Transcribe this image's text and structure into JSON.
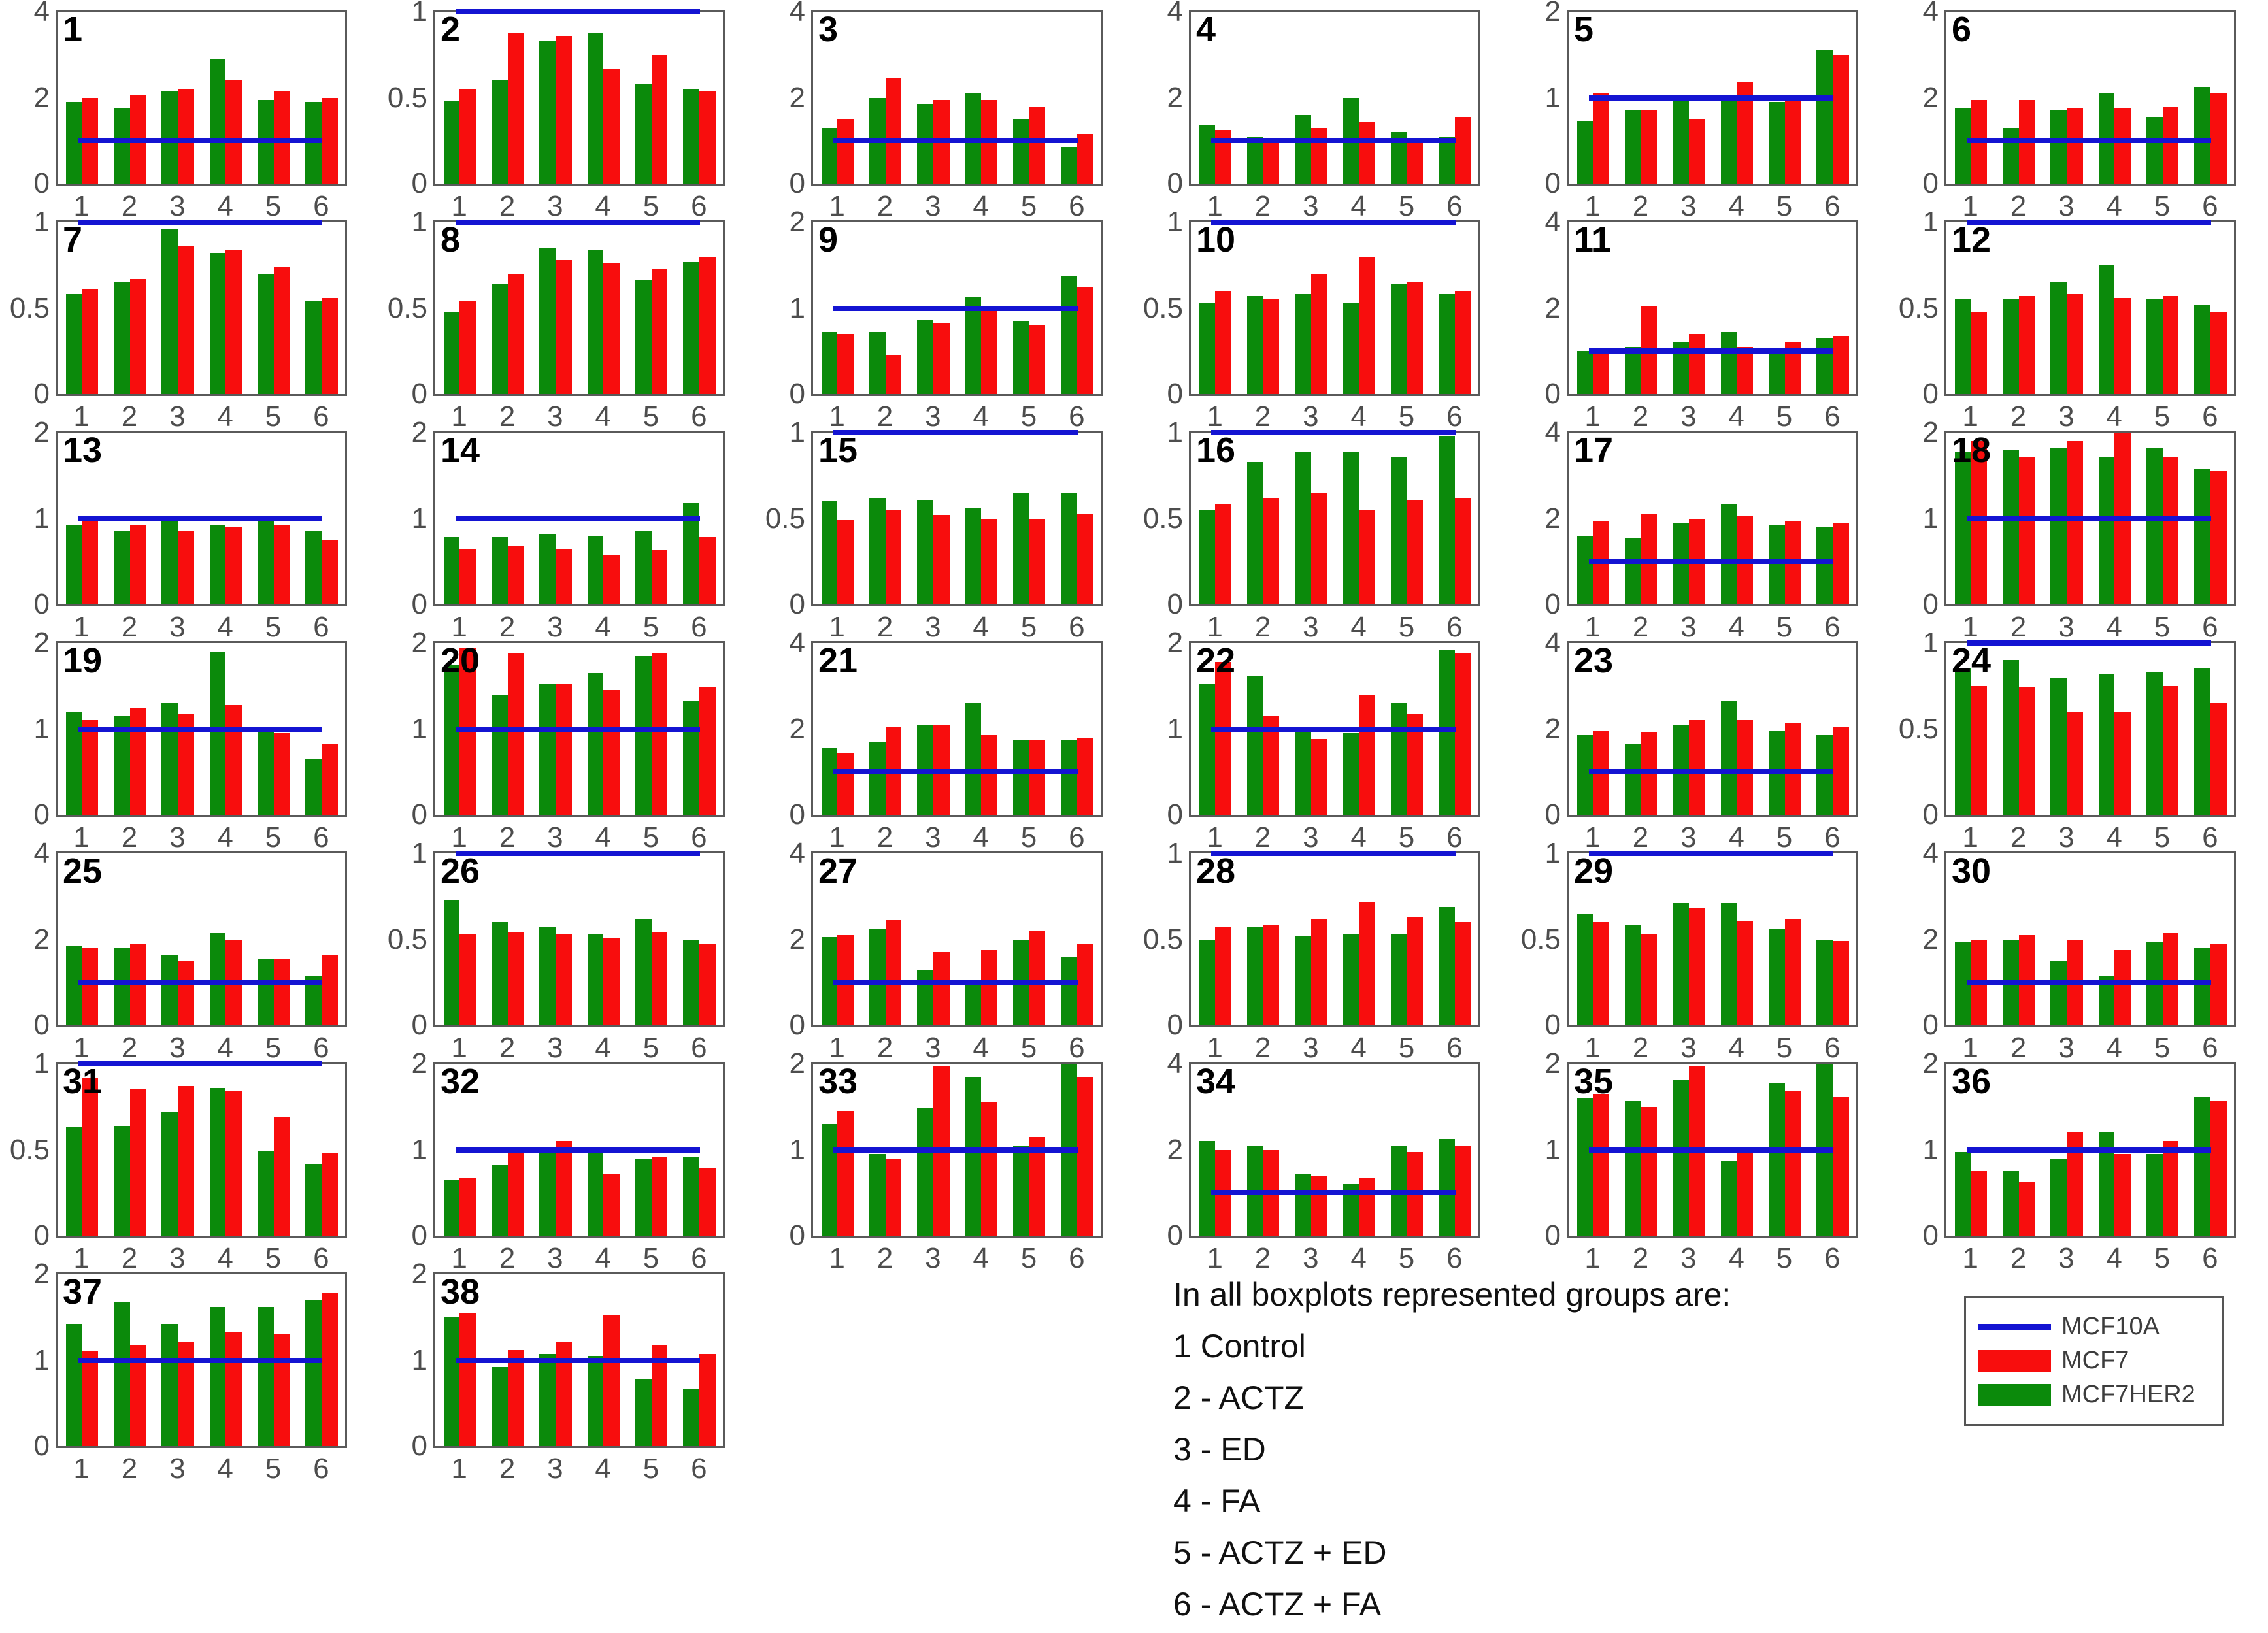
{
  "colors": {
    "mcf10a": "#1414d2",
    "mcf7": "#f80d0d",
    "mcf7her2": "#0b8a0b"
  },
  "notes": {
    "title": "In all boxplots represented groups are:",
    "lines": [
      "1 Control",
      "2 - ACTZ",
      "3 - ED",
      "4 - FA",
      "5 - ACTZ + ED",
      "6 - ACTZ + FA"
    ]
  },
  "legend": {
    "items": [
      {
        "label": "MCF10A",
        "color": "#1414d2",
        "swatch": "line"
      },
      {
        "label": "MCF7",
        "color": "#f80d0d",
        "swatch": "box"
      },
      {
        "label": "MCF7HER2",
        "color": "#0b8a0b",
        "swatch": "box"
      }
    ]
  },
  "chart_meta": {
    "categories": [
      "1",
      "2",
      "3",
      "4",
      "5",
      "6"
    ],
    "series_names": [
      "MCF7HER2",
      "MCF7"
    ],
    "ref_series": "MCF10A",
    "grid": "6 columns x 7 rows, subplots numbered 1-38",
    "legend_position": "bottom-right"
  },
  "chart_data": [
    {
      "id": 1,
      "type": "bar",
      "ymax": 4,
      "yticks": [
        "4",
        "2",
        "0"
      ],
      "ref_line": 1,
      "series": {
        "MCF7HER2": [
          1.9,
          1.75,
          2.15,
          2.9,
          1.95,
          1.9
        ],
        "MCF7": [
          2.0,
          2.05,
          2.2,
          2.4,
          2.15,
          2.0
        ]
      }
    },
    {
      "id": 2,
      "type": "bar",
      "ymax": 1,
      "yticks": [
        "1",
        "0.5",
        "0"
      ],
      "ref_line": 1,
      "series": {
        "MCF7HER2": [
          0.48,
          0.6,
          0.83,
          0.88,
          0.58,
          0.55
        ],
        "MCF7": [
          0.55,
          0.88,
          0.86,
          0.67,
          0.75,
          0.54
        ]
      }
    },
    {
      "id": 3,
      "type": "bar",
      "ymax": 4,
      "yticks": [
        "4",
        "2",
        "0"
      ],
      "ref_line": 1,
      "series": {
        "MCF7HER2": [
          1.3,
          2.0,
          1.85,
          2.1,
          1.5,
          0.85
        ],
        "MCF7": [
          1.5,
          2.45,
          1.95,
          1.95,
          1.8,
          1.15
        ]
      }
    },
    {
      "id": 4,
      "type": "bar",
      "ymax": 4,
      "yticks": [
        "4",
        "2",
        "0"
      ],
      "ref_line": 1,
      "series": {
        "MCF7HER2": [
          1.35,
          1.1,
          1.6,
          2.0,
          1.2,
          1.1
        ],
        "MCF7": [
          1.25,
          1.05,
          1.3,
          1.45,
          1.0,
          1.55
        ]
      }
    },
    {
      "id": 5,
      "type": "bar",
      "ymax": 2,
      "yticks": [
        "2",
        "1",
        "0"
      ],
      "ref_line": 1,
      "series": {
        "MCF7HER2": [
          0.73,
          0.85,
          1.0,
          1.0,
          0.95,
          1.55
        ],
        "MCF7": [
          1.05,
          0.85,
          0.75,
          1.18,
          1.0,
          1.5
        ]
      }
    },
    {
      "id": 6,
      "type": "bar",
      "ymax": 4,
      "yticks": [
        "4",
        "2",
        "0"
      ],
      "ref_line": 1,
      "series": {
        "MCF7HER2": [
          1.75,
          1.3,
          1.7,
          2.1,
          1.55,
          2.25
        ],
        "MCF7": [
          1.95,
          1.95,
          1.75,
          1.75,
          1.8,
          2.1
        ]
      }
    },
    {
      "id": 7,
      "type": "bar",
      "ymax": 1,
      "yticks": [
        "1",
        "0.5",
        "0"
      ],
      "ref_line": 1,
      "series": {
        "MCF7HER2": [
          0.58,
          0.65,
          0.96,
          0.82,
          0.7,
          0.54
        ],
        "MCF7": [
          0.61,
          0.67,
          0.86,
          0.84,
          0.74,
          0.56
        ]
      }
    },
    {
      "id": 8,
      "type": "bar",
      "ymax": 1,
      "yticks": [
        "1",
        "0.5",
        "0"
      ],
      "ref_line": 1,
      "series": {
        "MCF7HER2": [
          0.48,
          0.64,
          0.85,
          0.84,
          0.66,
          0.77
        ],
        "MCF7": [
          0.54,
          0.7,
          0.78,
          0.76,
          0.73,
          0.8
        ]
      }
    },
    {
      "id": 9,
      "type": "bar",
      "ymax": 2,
      "yticks": [
        "2",
        "1",
        "0"
      ],
      "ref_line": 1,
      "series": {
        "MCF7HER2": [
          0.72,
          0.72,
          0.87,
          1.13,
          0.85,
          1.38
        ],
        "MCF7": [
          0.7,
          0.45,
          0.83,
          1.03,
          0.8,
          1.25
        ]
      }
    },
    {
      "id": 10,
      "type": "bar",
      "ymax": 1,
      "yticks": [
        "1",
        "0.5",
        "0"
      ],
      "ref_line": 1,
      "series": {
        "MCF7HER2": [
          0.53,
          0.57,
          0.58,
          0.53,
          0.64,
          0.58
        ],
        "MCF7": [
          0.6,
          0.55,
          0.7,
          0.8,
          0.65,
          0.6
        ]
      }
    },
    {
      "id": 11,
      "type": "bar",
      "ymax": 4,
      "yticks": [
        "4",
        "2",
        "0"
      ],
      "ref_line": 1,
      "series": {
        "MCF7HER2": [
          1.0,
          1.1,
          1.2,
          1.45,
          1.0,
          1.3
        ],
        "MCF7": [
          1.05,
          2.05,
          1.4,
          1.1,
          1.2,
          1.35
        ]
      }
    },
    {
      "id": 12,
      "type": "bar",
      "ymax": 1,
      "yticks": [
        "1",
        "0.5",
        "0"
      ],
      "ref_line": 1,
      "series": {
        "MCF7HER2": [
          0.55,
          0.55,
          0.65,
          0.75,
          0.55,
          0.52
        ],
        "MCF7": [
          0.48,
          0.57,
          0.58,
          0.56,
          0.57,
          0.48
        ]
      }
    },
    {
      "id": 13,
      "type": "bar",
      "ymax": 2,
      "yticks": [
        "2",
        "1",
        "0"
      ],
      "ref_line": 1,
      "series": {
        "MCF7HER2": [
          0.92,
          0.85,
          0.97,
          0.93,
          1.03,
          0.85
        ],
        "MCF7": [
          0.97,
          0.92,
          0.85,
          0.9,
          0.92,
          0.75
        ]
      }
    },
    {
      "id": 14,
      "type": "bar",
      "ymax": 2,
      "yticks": [
        "2",
        "1",
        "0"
      ],
      "ref_line": 1,
      "series": {
        "MCF7HER2": [
          0.78,
          0.78,
          0.82,
          0.8,
          0.85,
          1.18
        ],
        "MCF7": [
          0.65,
          0.68,
          0.65,
          0.58,
          0.63,
          0.78
        ]
      }
    },
    {
      "id": 15,
      "type": "bar",
      "ymax": 1,
      "yticks": [
        "1",
        "0.5",
        "0"
      ],
      "ref_line": 1,
      "series": {
        "MCF7HER2": [
          0.6,
          0.62,
          0.61,
          0.56,
          0.65,
          0.65
        ],
        "MCF7": [
          0.49,
          0.55,
          0.52,
          0.5,
          0.5,
          0.53
        ]
      }
    },
    {
      "id": 16,
      "type": "bar",
      "ymax": 1,
      "yticks": [
        "1",
        "0.5",
        "0"
      ],
      "ref_line": 1,
      "series": {
        "MCF7HER2": [
          0.55,
          0.83,
          0.89,
          0.89,
          0.86,
          0.98
        ],
        "MCF7": [
          0.58,
          0.62,
          0.65,
          0.55,
          0.61,
          0.62
        ]
      }
    },
    {
      "id": 17,
      "type": "bar",
      "ymax": 4,
      "yticks": [
        "4",
        "2",
        "0"
      ],
      "ref_line": 1,
      "series": {
        "MCF7HER2": [
          1.6,
          1.55,
          1.9,
          2.35,
          1.85,
          1.8
        ],
        "MCF7": [
          1.95,
          2.1,
          2.0,
          2.05,
          1.95,
          1.9
        ]
      }
    },
    {
      "id": 18,
      "type": "bar",
      "ymax": 2,
      "yticks": [
        "2",
        "1",
        "0"
      ],
      "ref_line": 1,
      "series": {
        "MCF7HER2": [
          1.78,
          1.8,
          1.82,
          1.72,
          1.82,
          1.58
        ],
        "MCF7": [
          1.9,
          1.72,
          1.9,
          2.0,
          1.72,
          1.55
        ]
      }
    },
    {
      "id": 19,
      "type": "bar",
      "ymax": 2,
      "yticks": [
        "2",
        "1",
        "0"
      ],
      "ref_line": 1,
      "series": {
        "MCF7HER2": [
          1.2,
          1.15,
          1.3,
          1.9,
          0.97,
          0.65
        ],
        "MCF7": [
          1.1,
          1.25,
          1.18,
          1.28,
          0.95,
          0.82
        ]
      }
    },
    {
      "id": 20,
      "type": "bar",
      "ymax": 2,
      "yticks": [
        "2",
        "1",
        "0"
      ],
      "ref_line": 1,
      "series": {
        "MCF7HER2": [
          1.75,
          1.4,
          1.52,
          1.65,
          1.85,
          1.32
        ],
        "MCF7": [
          1.95,
          1.88,
          1.53,
          1.45,
          1.88,
          1.48
        ]
      }
    },
    {
      "id": 21,
      "type": "bar",
      "ymax": 4,
      "yticks": [
        "4",
        "2",
        "0"
      ],
      "ref_line": 1,
      "series": {
        "MCF7HER2": [
          1.55,
          1.7,
          2.1,
          2.6,
          1.75,
          1.75
        ],
        "MCF7": [
          1.45,
          2.05,
          2.1,
          1.85,
          1.75,
          1.8
        ]
      }
    },
    {
      "id": 22,
      "type": "bar",
      "ymax": 2,
      "yticks": [
        "2",
        "1",
        "0"
      ],
      "ref_line": 1,
      "series": {
        "MCF7HER2": [
          1.52,
          1.62,
          0.97,
          0.95,
          1.3,
          1.92
        ],
        "MCF7": [
          1.78,
          1.15,
          0.88,
          1.4,
          1.17,
          1.88
        ]
      }
    },
    {
      "id": 23,
      "type": "bar",
      "ymax": 4,
      "yticks": [
        "4",
        "2",
        "0"
      ],
      "ref_line": 1,
      "series": {
        "MCF7HER2": [
          1.85,
          1.65,
          2.1,
          2.65,
          1.95,
          1.85
        ],
        "MCF7": [
          1.95,
          1.93,
          2.2,
          2.2,
          2.15,
          2.05
        ]
      }
    },
    {
      "id": 24,
      "type": "bar",
      "ymax": 1,
      "yticks": [
        "1",
        "0.5",
        "0"
      ],
      "ref_line": 1,
      "series": {
        "MCF7HER2": [
          0.85,
          0.9,
          0.8,
          0.82,
          0.83,
          0.85
        ],
        "MCF7": [
          0.75,
          0.74,
          0.6,
          0.6,
          0.75,
          0.65
        ]
      }
    },
    {
      "id": 25,
      "type": "bar",
      "ymax": 4,
      "yticks": [
        "4",
        "2",
        "0"
      ],
      "ref_line": 1,
      "series": {
        "MCF7HER2": [
          1.85,
          1.8,
          1.65,
          2.15,
          1.55,
          1.15
        ],
        "MCF7": [
          1.8,
          1.9,
          1.5,
          2.0,
          1.55,
          1.65
        ]
      }
    },
    {
      "id": 26,
      "type": "bar",
      "ymax": 1,
      "yticks": [
        "1",
        "0.5",
        "0"
      ],
      "ref_line": 1,
      "series": {
        "MCF7HER2": [
          0.73,
          0.6,
          0.57,
          0.53,
          0.62,
          0.5
        ],
        "MCF7": [
          0.53,
          0.54,
          0.53,
          0.51,
          0.54,
          0.47
        ]
      }
    },
    {
      "id": 27,
      "type": "bar",
      "ymax": 4,
      "yticks": [
        "4",
        "2",
        "0"
      ],
      "ref_line": 1,
      "series": {
        "MCF7HER2": [
          2.05,
          2.25,
          1.3,
          1.0,
          2.0,
          1.6
        ],
        "MCF7": [
          2.1,
          2.45,
          1.7,
          1.75,
          2.2,
          1.9
        ]
      }
    },
    {
      "id": 28,
      "type": "bar",
      "ymax": 1,
      "yticks": [
        "1",
        "0.5",
        "0"
      ],
      "ref_line": 1,
      "series": {
        "MCF7HER2": [
          0.5,
          0.57,
          0.52,
          0.53,
          0.53,
          0.69
        ],
        "MCF7": [
          0.57,
          0.58,
          0.62,
          0.72,
          0.63,
          0.6
        ]
      }
    },
    {
      "id": 29,
      "type": "bar",
      "ymax": 1,
      "yticks": [
        "1",
        "0.5",
        "0"
      ],
      "ref_line": 1,
      "series": {
        "MCF7HER2": [
          0.65,
          0.58,
          0.71,
          0.71,
          0.56,
          0.5
        ],
        "MCF7": [
          0.6,
          0.53,
          0.68,
          0.61,
          0.62,
          0.49
        ]
      }
    },
    {
      "id": 30,
      "type": "bar",
      "ymax": 4,
      "yticks": [
        "4",
        "2",
        "0"
      ],
      "ref_line": 1,
      "series": {
        "MCF7HER2": [
          1.95,
          2.0,
          1.5,
          1.15,
          1.95,
          1.8
        ],
        "MCF7": [
          2.0,
          2.1,
          2.0,
          1.75,
          2.15,
          1.9
        ]
      }
    },
    {
      "id": 31,
      "type": "bar",
      "ymax": 1,
      "yticks": [
        "1",
        "0.5",
        "0"
      ],
      "ref_line": 1,
      "series": {
        "MCF7HER2": [
          0.63,
          0.64,
          0.72,
          0.86,
          0.49,
          0.42
        ],
        "MCF7": [
          0.92,
          0.85,
          0.87,
          0.84,
          0.69,
          0.48
        ]
      }
    },
    {
      "id": 32,
      "type": "bar",
      "ymax": 2,
      "yticks": [
        "2",
        "1",
        "0"
      ],
      "ref_line": 1,
      "series": {
        "MCF7HER2": [
          0.65,
          0.82,
          1.02,
          0.97,
          0.9,
          0.92
        ],
        "MCF7": [
          0.67,
          0.97,
          1.1,
          0.72,
          0.92,
          0.78
        ]
      }
    },
    {
      "id": 33,
      "type": "bar",
      "ymax": 2,
      "yticks": [
        "2",
        "1",
        "0"
      ],
      "ref_line": 1,
      "series": {
        "MCF7HER2": [
          1.3,
          0.95,
          1.48,
          1.85,
          1.05,
          2.0
        ],
        "MCF7": [
          1.45,
          0.9,
          1.97,
          1.55,
          1.15,
          1.85
        ]
      }
    },
    {
      "id": 34,
      "type": "bar",
      "ymax": 4,
      "yticks": [
        "4",
        "2",
        "0"
      ],
      "ref_line": 1,
      "series": {
        "MCF7HER2": [
          2.2,
          2.1,
          1.45,
          1.2,
          2.1,
          2.25
        ],
        "MCF7": [
          2.0,
          2.0,
          1.4,
          1.35,
          1.95,
          2.1
        ]
      }
    },
    {
      "id": 35,
      "type": "bar",
      "ymax": 2,
      "yticks": [
        "2",
        "1",
        "0"
      ],
      "ref_line": 1,
      "series": {
        "MCF7HER2": [
          1.6,
          1.57,
          1.82,
          0.87,
          1.78,
          2.0
        ],
        "MCF7": [
          1.65,
          1.5,
          1.97,
          1.03,
          1.68,
          1.62
        ]
      }
    },
    {
      "id": 36,
      "type": "bar",
      "ymax": 2,
      "yticks": [
        "2",
        "1",
        "0"
      ],
      "ref_line": 1,
      "series": {
        "MCF7HER2": [
          0.97,
          0.75,
          0.9,
          1.2,
          0.95,
          1.62
        ],
        "MCF7": [
          0.75,
          0.62,
          1.2,
          0.95,
          1.1,
          1.57
        ]
      }
    },
    {
      "id": 37,
      "type": "bar",
      "ymax": 2,
      "yticks": [
        "2",
        "1",
        "0"
      ],
      "ref_line": 1,
      "series": {
        "MCF7HER2": [
          1.42,
          1.68,
          1.42,
          1.62,
          1.62,
          1.7
        ],
        "MCF7": [
          1.1,
          1.17,
          1.22,
          1.32,
          1.3,
          1.78
        ]
      }
    },
    {
      "id": 38,
      "type": "bar",
      "ymax": 2,
      "yticks": [
        "2",
        "1",
        "0"
      ],
      "ref_line": 1,
      "series": {
        "MCF7HER2": [
          1.5,
          0.92,
          1.07,
          1.05,
          0.78,
          0.67
        ],
        "MCF7": [
          1.55,
          1.12,
          1.22,
          1.52,
          1.17,
          1.07
        ]
      }
    }
  ]
}
